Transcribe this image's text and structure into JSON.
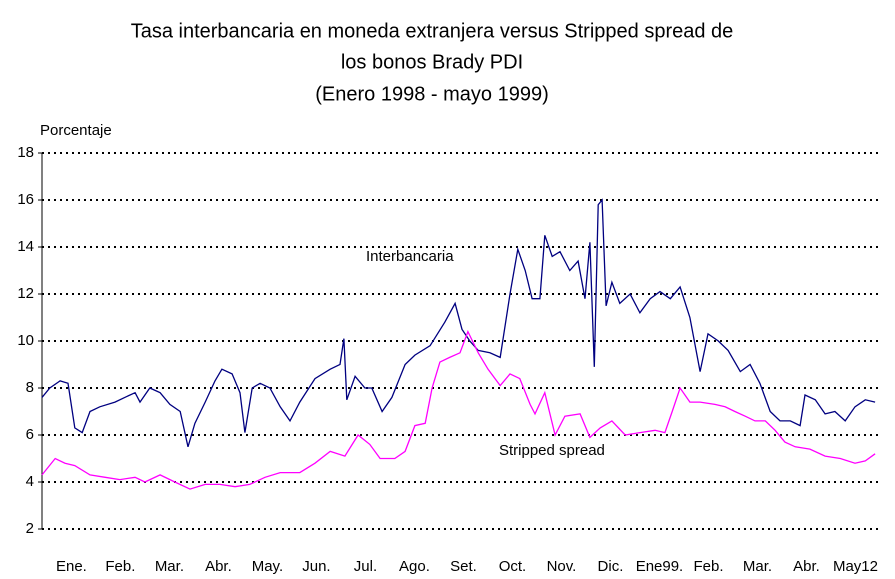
{
  "chart_data": {
    "type": "line",
    "title": [
      "Tasa interbancaria en moneda extranjera versus Stripped spread de",
      "los bonos Brady PDI"
    ],
    "subtitle": "(Enero 1998 - mayo 1999)",
    "y_label": "Porcentaje",
    "ylim": [
      2,
      18
    ],
    "yticks": [
      2,
      4,
      6,
      8,
      10,
      12,
      14,
      16,
      18
    ],
    "grid": true,
    "xlim": [
      -0.6,
      16.5
    ],
    "xticks": [
      {
        "value": 0,
        "label": "Ene."
      },
      {
        "value": 1,
        "label": "Feb."
      },
      {
        "value": 2,
        "label": "Mar."
      },
      {
        "value": 3,
        "label": "Abr."
      },
      {
        "value": 4,
        "label": "May."
      },
      {
        "value": 5,
        "label": "Jun."
      },
      {
        "value": 6,
        "label": "Jul."
      },
      {
        "value": 7,
        "label": "Ago."
      },
      {
        "value": 8,
        "label": "Set."
      },
      {
        "value": 9,
        "label": "Oct."
      },
      {
        "value": 10,
        "label": "Nov."
      },
      {
        "value": 11,
        "label": "Dic."
      },
      {
        "value": 12,
        "label": "Ene99."
      },
      {
        "value": 13,
        "label": "Feb."
      },
      {
        "value": 14,
        "label": "Mar."
      },
      {
        "value": 15,
        "label": "Abr."
      },
      {
        "value": 16,
        "label": "May12"
      }
    ],
    "series": [
      {
        "name": "Interbancaria",
        "color": "#000080",
        "x": [
          -0.6,
          -0.44,
          -0.23,
          -0.07,
          0.07,
          0.22,
          0.38,
          0.58,
          0.89,
          1.09,
          1.3,
          1.4,
          1.6,
          1.81,
          2.01,
          2.22,
          2.38,
          2.52,
          2.73,
          2.93,
          3.07,
          3.28,
          3.44,
          3.54,
          3.69,
          3.85,
          4.05,
          4.26,
          4.46,
          4.66,
          4.97,
          5.28,
          5.48,
          5.56,
          5.62,
          5.79,
          5.99,
          6.13,
          6.34,
          6.54,
          6.81,
          7.01,
          7.32,
          7.62,
          7.83,
          7.97,
          8.13,
          8.3,
          8.54,
          8.75,
          8.95,
          9.11,
          9.26,
          9.4,
          9.56,
          9.66,
          9.81,
          9.97,
          10.17,
          10.34,
          10.48,
          10.58,
          10.67,
          10.75,
          10.83,
          10.91,
          11.03,
          11.19,
          11.4,
          11.6,
          11.81,
          12.01,
          12.22,
          12.42,
          12.62,
          12.83,
          12.99,
          13.2,
          13.4,
          13.65,
          13.85,
          14.05,
          14.26,
          14.46,
          14.67,
          14.87,
          14.97,
          15.18,
          15.38,
          15.58,
          15.79,
          15.99,
          16.2,
          16.4
        ],
        "values": [
          7.6,
          8.0,
          8.3,
          8.2,
          6.3,
          6.1,
          7.0,
          7.2,
          7.4,
          7.6,
          7.8,
          7.4,
          8.0,
          7.8,
          7.3,
          7.0,
          5.5,
          6.5,
          7.4,
          8.3,
          8.8,
          8.6,
          7.8,
          6.1,
          8.0,
          8.2,
          8.0,
          7.2,
          6.6,
          7.4,
          8.4,
          8.8,
          9.0,
          10.1,
          7.5,
          8.5,
          8.0,
          8.0,
          7.0,
          7.6,
          9.0,
          9.4,
          9.8,
          10.8,
          11.6,
          10.5,
          10.0,
          9.6,
          9.5,
          9.3,
          12.0,
          13.9,
          13.0,
          11.8,
          11.8,
          14.5,
          13.6,
          13.8,
          13.0,
          13.4,
          11.8,
          14.2,
          8.9,
          15.8,
          16.0,
          11.5,
          12.5,
          11.6,
          12.0,
          11.2,
          11.8,
          12.1,
          11.8,
          12.3,
          11.0,
          8.7,
          10.3,
          10.0,
          9.6,
          8.7,
          9.0,
          8.2,
          7.0,
          6.6,
          6.6,
          6.4,
          7.7,
          7.5,
          6.9,
          7.0,
          6.6,
          7.2,
          7.5,
          7.4
        ]
      },
      {
        "name": "Stripped spread",
        "color": "#ff00ff",
        "x": [
          -0.6,
          -0.33,
          -0.13,
          0.07,
          0.38,
          0.69,
          0.99,
          1.3,
          1.5,
          1.81,
          2.11,
          2.42,
          2.73,
          3.03,
          3.34,
          3.64,
          3.95,
          4.26,
          4.66,
          4.97,
          5.28,
          5.58,
          5.85,
          6.09,
          6.3,
          6.6,
          6.81,
          7.01,
          7.22,
          7.36,
          7.52,
          7.72,
          7.93,
          8.09,
          8.3,
          8.5,
          8.75,
          8.95,
          9.15,
          9.36,
          9.46,
          9.66,
          9.87,
          10.07,
          10.38,
          10.58,
          10.79,
          11.03,
          11.3,
          11.6,
          11.91,
          12.11,
          12.26,
          12.42,
          12.62,
          12.83,
          13.13,
          13.34,
          13.54,
          13.75,
          13.95,
          14.16,
          14.36,
          14.56,
          14.77,
          15.07,
          15.38,
          15.69,
          15.99,
          16.2,
          16.4
        ],
        "values": [
          4.3,
          5.0,
          4.8,
          4.7,
          4.3,
          4.2,
          4.1,
          4.2,
          4.0,
          4.3,
          4.0,
          3.7,
          3.9,
          3.9,
          3.8,
          3.9,
          4.2,
          4.4,
          4.4,
          4.8,
          5.3,
          5.1,
          6.0,
          5.6,
          5.0,
          5.0,
          5.3,
          6.4,
          6.5,
          8.0,
          9.1,
          9.3,
          9.5,
          10.4,
          9.5,
          8.8,
          8.1,
          8.6,
          8.4,
          7.3,
          6.9,
          7.8,
          6.0,
          6.8,
          6.9,
          5.9,
          6.3,
          6.6,
          6.0,
          6.1,
          6.2,
          6.1,
          7.0,
          8.0,
          7.4,
          7.4,
          7.3,
          7.2,
          7.0,
          6.8,
          6.6,
          6.6,
          6.2,
          5.7,
          5.5,
          5.4,
          5.1,
          5.0,
          4.8,
          4.9,
          5.2
        ]
      }
    ]
  }
}
